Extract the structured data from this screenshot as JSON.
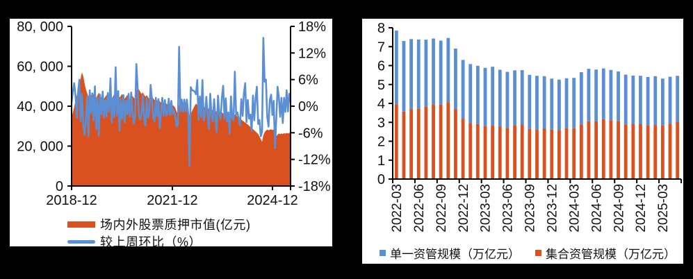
{
  "page": {
    "background": "#000000",
    "panel_background": "#ffffff",
    "text_color": "#111111"
  },
  "colors": {
    "orange": "#D8511F",
    "blue": "#5B8FD3",
    "axis": "#000000"
  },
  "chart_data": [
    {
      "id": "pledge-chart",
      "type": "area",
      "title": "",
      "description": "Weekly stock pledge market value (orange area, left axis, 亿元) with week-over-week change (blue line, right axis, %). Sampled points from 2018-12 to 2025-06.",
      "x_tick_labels": [
        "2018-12",
        "2021-12",
        "2024-12"
      ],
      "y_left": {
        "range": [
          0,
          80000
        ],
        "ticks": [
          0,
          20000,
          40000,
          60000,
          80000
        ],
        "tick_labels": [
          "0",
          "20, 000",
          "40, 000",
          "60, 000",
          "80, 000"
        ]
      },
      "y_right": {
        "range": [
          -18,
          18
        ],
        "ticks": [
          -18,
          -12,
          -6,
          0,
          6,
          12,
          18
        ],
        "tick_labels": [
          "-18%",
          "-12%",
          "-6%",
          "0%",
          "6%",
          "12%",
          "18%"
        ]
      },
      "series": [
        {
          "name": "场内外股票质押市值(亿元)",
          "type": "area",
          "axis": "left",
          "color": "#D8511F",
          "values": [
            34500,
            36800,
            39500,
            43000,
            45500,
            47500,
            50500,
            54000,
            57000,
            55000,
            51500,
            48500,
            46500,
            45000,
            44300,
            45800,
            44600,
            46300,
            45200,
            44100,
            45500,
            46800,
            45600,
            44400,
            45000,
            43800,
            44700,
            45600,
            46900,
            45800,
            44500,
            43600,
            44900,
            46100,
            45000,
            46400,
            45500,
            44300,
            45200,
            46100,
            44900,
            43800,
            44700,
            45600,
            44400,
            43500,
            44300,
            45200,
            44300,
            43400,
            47500,
            49400,
            48300,
            47200,
            46100,
            46900,
            45700,
            44800,
            45600,
            44500,
            43600,
            44400,
            45100,
            43900,
            43000,
            43800,
            42800,
            43500,
            42500,
            41800,
            42600,
            41700,
            42300,
            41400,
            40800,
            41500,
            40700,
            41200,
            40500,
            40100,
            39200,
            37400,
            35800,
            40600,
            40100,
            40700,
            40200,
            40800,
            40300,
            40900,
            40200,
            34800,
            36300,
            37600,
            38900,
            40200,
            41300,
            40600,
            41000,
            40400,
            39800,
            40300,
            39700,
            39200,
            39600,
            39100,
            38600,
            39000,
            38400,
            37900,
            38300,
            37700,
            37200,
            37600,
            37000,
            36500,
            36900,
            36300,
            35800,
            36200,
            35600,
            35100,
            35500,
            34900,
            34400,
            33300,
            35900,
            35300,
            34800,
            34300,
            33900,
            33300,
            32800,
            32300,
            31800,
            31300,
            30800,
            30200,
            29600,
            29100,
            28500,
            27900,
            27300,
            26700,
            26000,
            24800,
            23600,
            22100,
            25500,
            26900,
            27800,
            28300,
            27900,
            28200,
            28400,
            28100,
            28300,
            25600,
            24900,
            25800,
            26300,
            25900,
            26400,
            26000,
            26500,
            26200,
            26600,
            26300,
            26700,
            26500
          ]
        },
        {
          "name": "较上周环比（%）",
          "type": "line",
          "axis": "right",
          "color": "#5B8FD3",
          "values": [
            0.8,
            3.2,
            5.2,
            2.4,
            -2.6,
            3.1,
            6.0,
            -3.4,
            2.8,
            -4.2,
            -6.5,
            -2.8,
            2.2,
            -6.8,
            3.6,
            -1.6,
            2.9,
            -3.2,
            4.5,
            -5.2,
            1.8,
            -6.7,
            2.6,
            -1.9,
            3.3,
            -2.7,
            1.4,
            -2.3,
            3.0,
            -1.2,
            6.3,
            -3.8,
            1.9,
            -2.5,
            8.8,
            -2.1,
            3.4,
            -5.5,
            1.6,
            -2.9,
            2.5,
            -3.6,
            1.2,
            -1.8,
            2.8,
            -2.4,
            3.1,
            -1.5,
            -3.9,
            -2.2,
            9.5,
            4.0,
            -2.2,
            -3.0,
            -1.6,
            2.4,
            -2.8,
            -4.4,
            1.8,
            -2.6,
            -1.2,
            4.8,
            1.6,
            -2.7,
            -3.4,
            1.9,
            -2.3,
            1.6,
            -5.0,
            -1.7,
            1.9,
            -2.1,
            1.4,
            -2.2,
            -1.5,
            1.7,
            -2.0,
            1.2,
            -1.7,
            -1.0,
            -2.2,
            -4.6,
            -4.3,
            13.4,
            -1.2,
            1.5,
            -1.2,
            1.5,
            -1.2,
            1.5,
            -1.7,
            -13.4,
            4.3,
            3.6,
            3.5,
            3.3,
            2.7,
            5.9,
            -3.1,
            2.2,
            -2.5,
            5.9,
            -3.3,
            -1.6,
            2.1,
            -2.4,
            -5.2,
            2.8,
            -2.0,
            -3.4,
            1.6,
            -2.6,
            -5.8,
            2.4,
            -1.8,
            -3.0,
            2.0,
            4.6,
            -2.8,
            1.8,
            -3.5,
            -1.4,
            -6.2,
            2.2,
            -2.6,
            -3.2,
            7.8,
            -2.0,
            -1.4,
            -2.9,
            -4.4,
            1.6,
            -2.2,
            3.0,
            5.2,
            -3.6,
            1.4,
            -2.8,
            -1.9,
            -5.6,
            2.4,
            -3.2,
            1.8,
            4.4,
            -4.0,
            -3.1,
            -6.8,
            -5.8,
            15.4,
            5.5,
            6.0,
            -2.4,
            -4.6,
            1.4,
            2.6,
            -2.0,
            1.2,
            -9.5,
            -2.7,
            4.4,
            2.0,
            -2.4,
            1.9,
            -3.8,
            1.9,
            -1.3,
            3.6,
            -1.2,
            2.8,
            1.0
          ]
        }
      ],
      "legend_position": "bottom-left"
    },
    {
      "id": "asset-mgmt-chart",
      "type": "bar",
      "stacked": true,
      "title": "",
      "description": "Monthly stacked bars: 集合资管规模 (orange, bottom) and 单一资管规模 (blue, top), unit 万亿元.",
      "categories": [
        "2022-03",
        "2022-04",
        "2022-05",
        "2022-06",
        "2022-07",
        "2022-08",
        "2022-09",
        "2022-10",
        "2022-11",
        "2022-12",
        "2023-01",
        "2023-02",
        "2023-03",
        "2023-04",
        "2023-05",
        "2023-06",
        "2023-07",
        "2023-08",
        "2023-09",
        "2023-10",
        "2023-11",
        "2023-12",
        "2024-01",
        "2024-02",
        "2024-03",
        "2024-04",
        "2024-05",
        "2024-06",
        "2024-07",
        "2024-08",
        "2024-09",
        "2024-10",
        "2024-11",
        "2024-12",
        "2025-01",
        "2025-02",
        "2025-03",
        "2025-04",
        "2025-05"
      ],
      "x_tick_labels": [
        "2022-03",
        "2022-06",
        "2022-09",
        "2022-12",
        "2023-03",
        "2023-06",
        "2023-09",
        "2023-12",
        "2024-03",
        "2024-06",
        "2024-09",
        "2024-12",
        "2025-03"
      ],
      "y": {
        "range": [
          0,
          8
        ],
        "ticks": [
          0,
          1,
          2,
          3,
          4,
          5,
          6,
          7,
          8
        ],
        "tick_labels": [
          "0",
          "1",
          "2",
          "3",
          "4",
          "5",
          "6",
          "7",
          "8"
        ]
      },
      "series": [
        {
          "name": "单一资管规模（万亿元）",
          "color": "#5B8FD3",
          "stack_position": "top",
          "values": [
            3.9,
            3.73,
            3.7,
            3.66,
            3.55,
            3.49,
            3.38,
            3.39,
            3.2,
            3.11,
            3.11,
            3.08,
            3.08,
            3.1,
            3.01,
            2.96,
            2.91,
            2.88,
            2.86,
            2.84,
            2.78,
            2.7,
            2.66,
            2.64,
            2.66,
            2.76,
            2.78,
            2.74,
            2.69,
            2.66,
            2.63,
            2.63,
            2.57,
            2.56,
            2.56,
            2.58,
            2.48,
            2.49,
            2.43
          ]
        },
        {
          "name": "集合资管规模（万亿元）",
          "color": "#D8511F",
          "stack_position": "bottom",
          "values": [
            3.95,
            3.57,
            3.7,
            3.72,
            3.82,
            3.94,
            3.94,
            4.07,
            3.7,
            3.19,
            2.97,
            2.91,
            2.8,
            2.84,
            2.77,
            2.71,
            2.84,
            2.88,
            2.65,
            2.62,
            2.66,
            2.61,
            2.6,
            2.69,
            2.69,
            2.89,
            3.05,
            3.05,
            3.16,
            3.11,
            3.06,
            2.89,
            2.9,
            2.9,
            2.84,
            2.86,
            2.83,
            2.92,
            3.03
          ]
        }
      ],
      "legend_position": "bottom"
    }
  ]
}
